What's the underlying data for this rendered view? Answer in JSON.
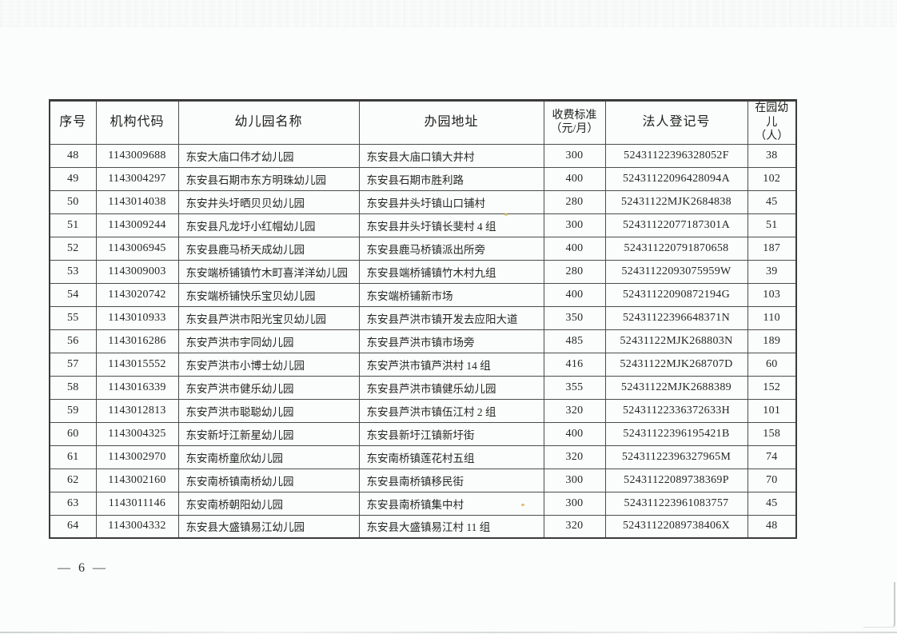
{
  "document": {
    "page_label": "— 6 —"
  },
  "table": {
    "headers": [
      {
        "key": "no",
        "label": "序号"
      },
      {
        "key": "code",
        "label": "机构代码"
      },
      {
        "key": "name",
        "label": "幼儿园名称"
      },
      {
        "key": "address",
        "label": "办园地址"
      },
      {
        "key": "fee",
        "label": "收费标准\n（元/月）"
      },
      {
        "key": "reg",
        "label": "法人登记号"
      },
      {
        "key": "children",
        "label": "在园幼\n儿（人）"
      }
    ],
    "rows": [
      {
        "no": "48",
        "code": "1143009688",
        "name": "东安大庙口伟才幼儿园",
        "address": "东安县大庙口镇大井村",
        "fee": "300",
        "reg": "52431122396328052F",
        "children": "38"
      },
      {
        "no": "49",
        "code": "1143004297",
        "name": "东安县石期市东方明珠幼儿园",
        "address": "东安县石期市胜利路",
        "fee": "400",
        "reg": "52431122096428094A",
        "children": "102"
      },
      {
        "no": "50",
        "code": "1143014038",
        "name": "东安井头圩晒贝贝幼儿园",
        "address": "东安县井头圩镇山口铺村",
        "fee": "280",
        "reg": "52431122MJK2684838",
        "children": "45"
      },
      {
        "no": "51",
        "code": "1143009244",
        "name": "东安县凡龙圩小红帽幼儿园",
        "address": "东安县井头圩镇长斐村 4 组",
        "fee": "300",
        "reg": "52431122077187301A",
        "children": "51"
      },
      {
        "no": "52",
        "code": "1143006945",
        "name": "东安县鹿马桥天成幼儿园",
        "address": "东安县鹿马桥镇派出所旁",
        "fee": "400",
        "reg": "524311220791870658",
        "children": "187"
      },
      {
        "no": "53",
        "code": "1143009003",
        "name": "东安端桥铺镇竹木町喜洋洋幼儿园",
        "address": "东安县端桥铺镇竹木村九组",
        "fee": "280",
        "reg": "52431122093075959W",
        "children": "39"
      },
      {
        "no": "54",
        "code": "1143020742",
        "name": "东安端桥铺快乐宝贝幼儿园",
        "address": "东安端桥铺新市场",
        "fee": "400",
        "reg": "52431122090872194G",
        "children": "103"
      },
      {
        "no": "55",
        "code": "1143010933",
        "name": "东安县芦洪市阳光宝贝幼儿园",
        "address": "东安县芦洪市镇开发去应阳大道",
        "fee": "350",
        "reg": "52431122396648371N",
        "children": "110"
      },
      {
        "no": "56",
        "code": "1143016286",
        "name": "东安芦洪市宇同幼儿园",
        "address": "东安县芦洪市镇市场旁",
        "fee": "485",
        "reg": "52431122MJK268803N",
        "children": "189"
      },
      {
        "no": "57",
        "code": "1143015552",
        "name": "东安芦洪市小博士幼儿园",
        "address": "东安芦洪市镇芦洪村 14 组",
        "fee": "416",
        "reg": "52431122MJK268707D",
        "children": "60"
      },
      {
        "no": "58",
        "code": "1143016339",
        "name": "东安芦洪市健乐幼儿园",
        "address": "东安县芦洪市镇健乐幼儿园",
        "fee": "355",
        "reg": "52431122MJK2688389",
        "children": "152"
      },
      {
        "no": "59",
        "code": "1143012813",
        "name": "东安芦洪市聪聪幼儿园",
        "address": "东安县芦洪市镇伍江村 2 组",
        "fee": "320",
        "reg": "52431122336372633H",
        "children": "101"
      },
      {
        "no": "60",
        "code": "1143004325",
        "name": "东安新圩江新星幼儿园",
        "address": "东安县新圩江镇新圩街",
        "fee": "400",
        "reg": "52431122396195421B",
        "children": "158"
      },
      {
        "no": "61",
        "code": "1143002970",
        "name": "东安南桥童欣幼儿园",
        "address": "东安南桥镇莲花村五组",
        "fee": "320",
        "reg": "52431122396327965M",
        "children": "74"
      },
      {
        "no": "62",
        "code": "1143002160",
        "name": "东安南桥镇南桥幼儿园",
        "address": "东安县南桥镇移民街",
        "fee": "300",
        "reg": "52431122089738369P",
        "children": "70"
      },
      {
        "no": "63",
        "code": "1143011146",
        "name": "东安南桥朝阳幼儿园",
        "address": "东安县南桥镇集中村",
        "fee": "300",
        "reg": "524311223961083757",
        "children": "45"
      },
      {
        "no": "64",
        "code": "1143004332",
        "name": "东安县大盛镇易江幼儿园",
        "address": "东安县大盛镇易江村 11 组",
        "fee": "320",
        "reg": "52431122089738406X",
        "children": "48"
      }
    ]
  }
}
